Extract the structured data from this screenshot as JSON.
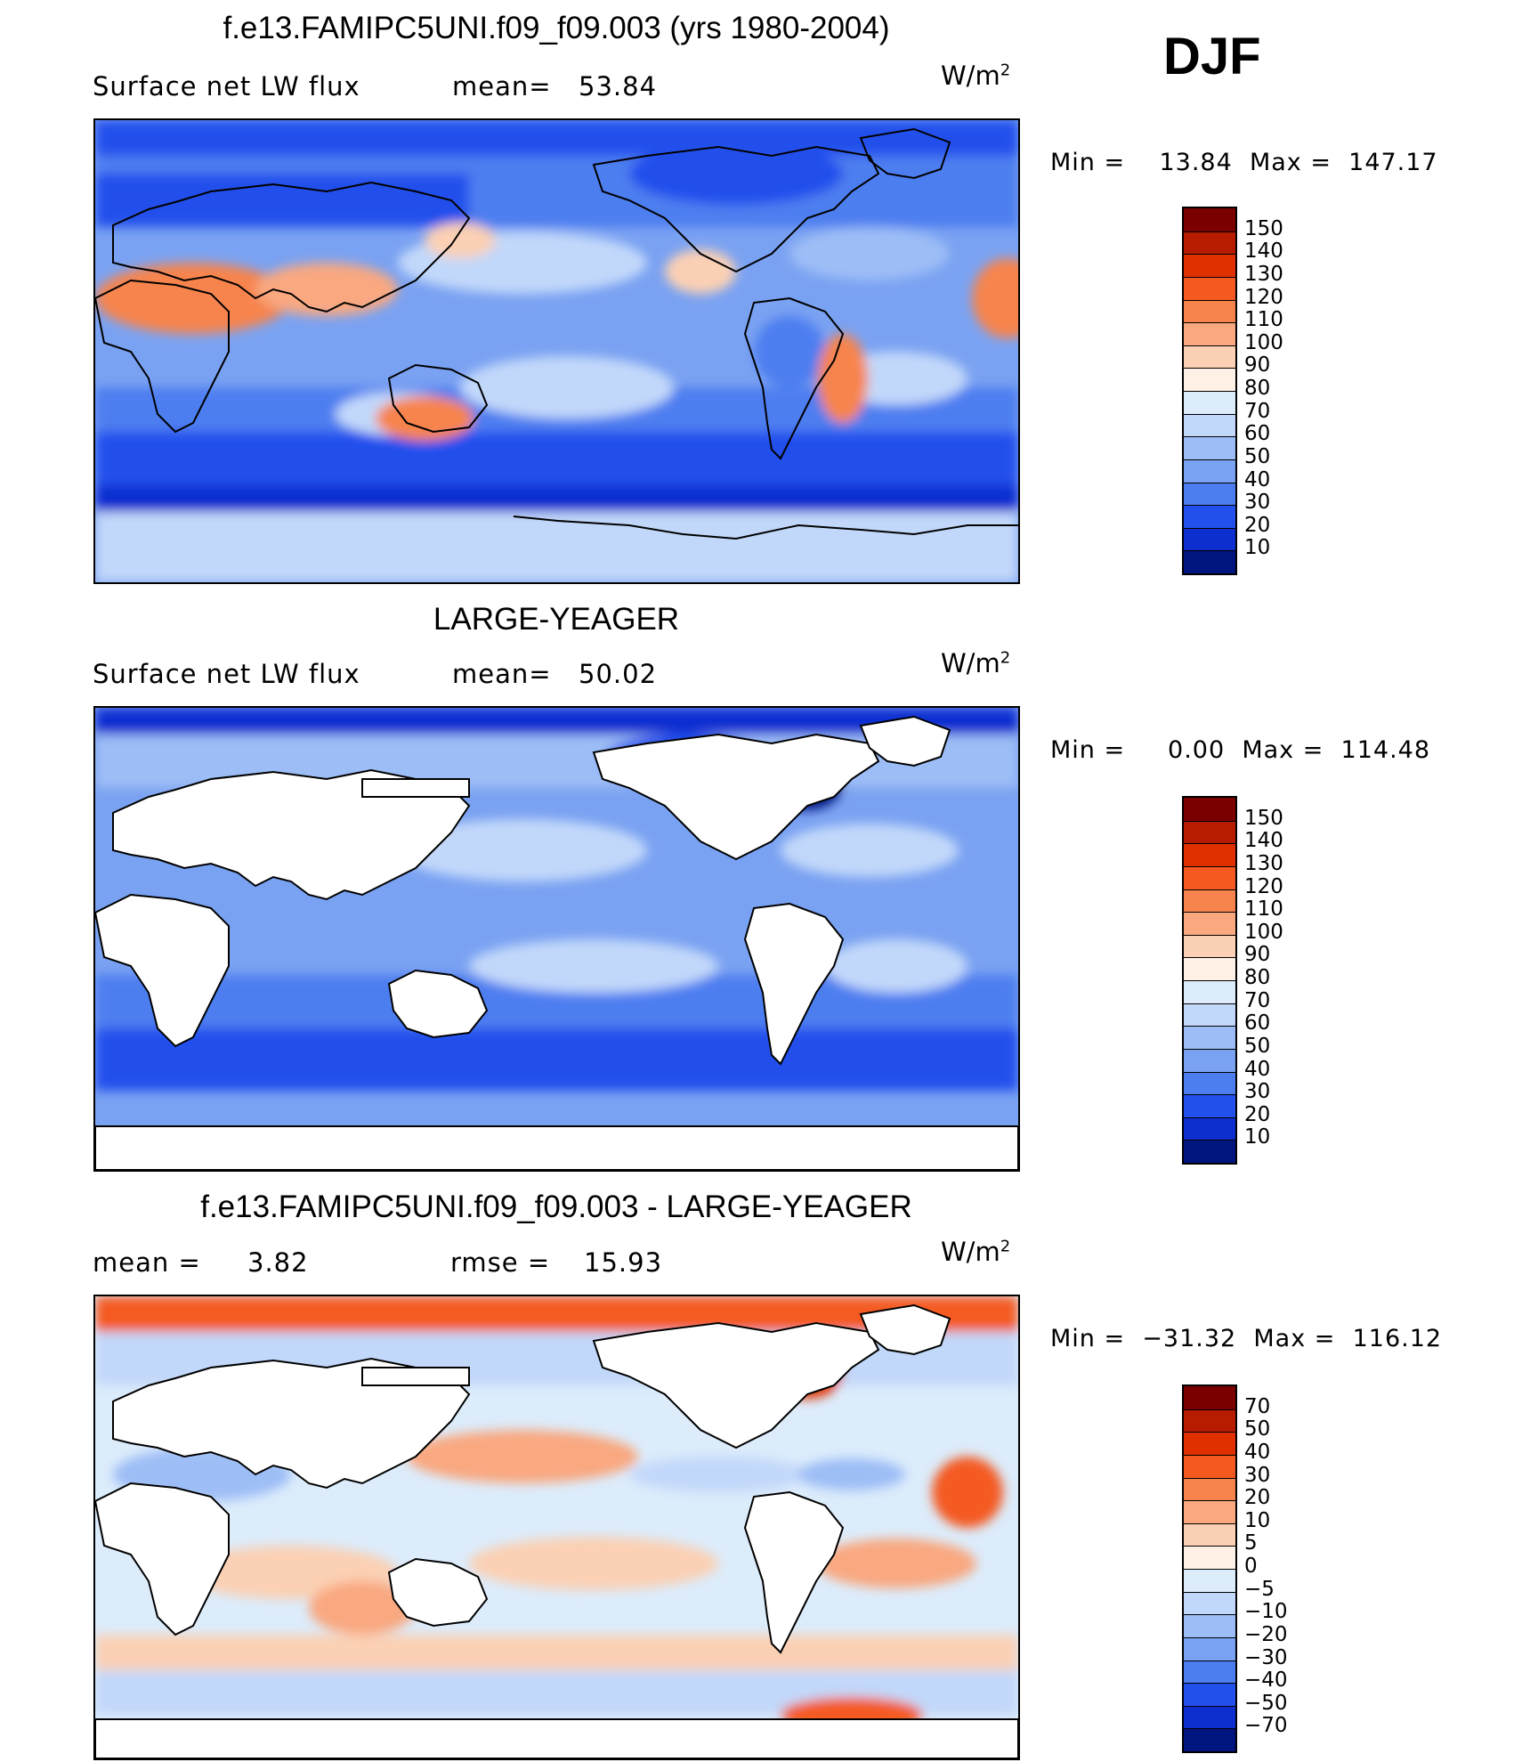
{
  "season": "DJF",
  "panels": [
    {
      "title": "f.e13.FAMIPC5UNI.f09_f09.003 (yrs 1980-2004)",
      "stat_left_label": "Surface net LW flux",
      "stat_mid_label": "mean=",
      "stat_mid_value": "53.84",
      "stat_right_label": "",
      "stat_right_value": "",
      "units": "W/m",
      "units_exp": "2",
      "min_label": "Min =",
      "min_value": "13.84",
      "max_label": "Max =",
      "max_value": "147.17",
      "colorbar": {
        "levels": [
          "150",
          "140",
          "130",
          "120",
          "110",
          "100",
          "90",
          "80",
          "70",
          "60",
          "50",
          "40",
          "30",
          "20",
          "10"
        ],
        "colors": [
          "#7a0000",
          "#b81c00",
          "#e03000",
          "#f45a20",
          "#f7844d",
          "#f9a880",
          "#fbd0b4",
          "#fff0e6",
          "#dcecfb",
          "#c2d8fa",
          "#9dbdf6",
          "#7aa2f2",
          "#4d7ef0",
          "#2250ec",
          "#0e2fd0",
          "#001580"
        ]
      }
    },
    {
      "title": "LARGE-YEAGER",
      "stat_left_label": "Surface net LW flux",
      "stat_mid_label": "mean=",
      "stat_mid_value": "50.02",
      "stat_right_label": "",
      "stat_right_value": "",
      "units": "W/m",
      "units_exp": "2",
      "min_label": "Min =",
      "min_value": "0.00",
      "max_label": "Max =",
      "max_value": "114.48",
      "colorbar": {
        "levels": [
          "150",
          "140",
          "130",
          "120",
          "110",
          "100",
          "90",
          "80",
          "70",
          "60",
          "50",
          "40",
          "30",
          "20",
          "10"
        ],
        "colors": [
          "#7a0000",
          "#b81c00",
          "#e03000",
          "#f45a20",
          "#f7844d",
          "#f9a880",
          "#fbd0b4",
          "#fff0e6",
          "#dcecfb",
          "#c2d8fa",
          "#9dbdf6",
          "#7aa2f2",
          "#4d7ef0",
          "#2250ec",
          "#0e2fd0",
          "#001580"
        ]
      }
    },
    {
      "title": "f.e13.FAMIPC5UNI.f09_f09.003 - LARGE-YEAGER",
      "stat_left_label": "mean =",
      "stat_mid_label": "3.82",
      "stat_mid_value": "",
      "stat_right_label": "rmse =",
      "stat_right_value": "15.93",
      "units": "W/m",
      "units_exp": "2",
      "min_label": "Min =",
      "min_value": "−31.32",
      "max_label": "Max =",
      "max_value": "116.12",
      "colorbar": {
        "levels": [
          "70",
          "50",
          "40",
          "30",
          "20",
          "10",
          "5",
          "0",
          "−5",
          "−10",
          "−20",
          "−30",
          "−40",
          "−50",
          "−70"
        ],
        "colors": [
          "#7a0000",
          "#b81c00",
          "#e03000",
          "#f45a20",
          "#f7844d",
          "#f9a880",
          "#fbd0b4",
          "#fff0e6",
          "#dcecfb",
          "#c2d8fa",
          "#9dbdf6",
          "#7aa2f2",
          "#4d7ef0",
          "#2250ec",
          "#0e2fd0",
          "#001580"
        ]
      }
    }
  ]
}
